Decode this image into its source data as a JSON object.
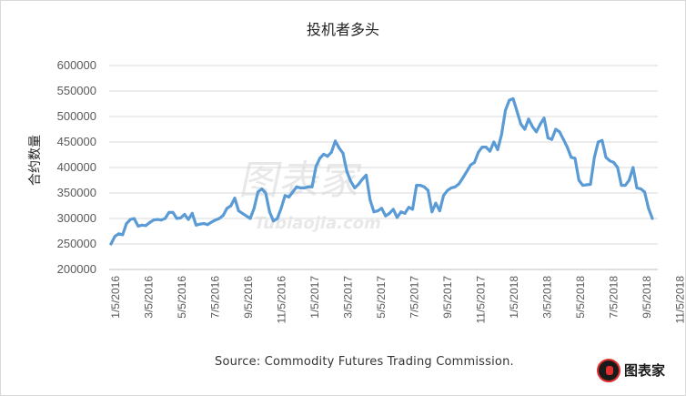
{
  "chart_data": {
    "type": "line",
    "title": "投机者多头",
    "ylabel": "合约数量",
    "xlabel": "",
    "source": "Source: Commodity Futures Trading Commission.",
    "watermark": "图表家",
    "watermark_sub": "Tubiaojia.com",
    "logo_text": "图表家",
    "ylim": [
      200000,
      600000
    ],
    "yticks": [
      200000,
      250000,
      300000,
      350000,
      400000,
      450000,
      500000,
      550000,
      600000
    ],
    "xticks": [
      "1/5/2016",
      "3/5/2016",
      "5/5/2016",
      "7/5/2016",
      "9/5/2016",
      "11/5/2016",
      "1/5/2017",
      "3/5/2017",
      "5/5/2017",
      "7/5/2017",
      "9/5/2017",
      "11/5/2017",
      "1/5/2018",
      "3/5/2018",
      "5/5/2018",
      "7/5/2018",
      "9/5/2018",
      "11/5/2018"
    ],
    "line_color": "#5b9bd5",
    "grid": true,
    "series": [
      {
        "values": [
          250000,
          265000,
          270000,
          268000,
          290000,
          298000,
          300000,
          285000,
          287000,
          286000,
          292000,
          297000,
          298000,
          297000,
          300000,
          312000,
          312000,
          300000,
          301000,
          308000,
          298000,
          310000,
          287000,
          289000,
          290000,
          288000,
          293000,
          297000,
          300000,
          306000,
          320000,
          325000,
          340000,
          315000,
          310000,
          305000,
          300000,
          320000,
          352000,
          358000,
          350000,
          313000,
          295000,
          300000,
          320000,
          345000,
          342000,
          352000,
          362000,
          360000,
          360000,
          362000,
          362000,
          402000,
          418000,
          426000,
          422000,
          430000,
          452000,
          438000,
          428000,
          392000,
          373000,
          360000,
          367000,
          377000,
          385000,
          336000,
          313000,
          315000,
          320000,
          305000,
          310000,
          318000,
          302000,
          313000,
          310000,
          322000,
          318000,
          365000,
          365000,
          362000,
          355000,
          313000,
          330000,
          315000,
          345000,
          355000,
          360000,
          362000,
          368000,
          380000,
          392000,
          405000,
          410000,
          430000,
          440000,
          440000,
          432000,
          450000,
          435000,
          465000,
          512000,
          532000,
          535000,
          510000,
          485000,
          475000,
          495000,
          480000,
          470000,
          485000,
          497000,
          458000,
          455000,
          475000,
          470000,
          455000,
          440000,
          420000,
          418000,
          375000,
          365000,
          366000,
          367000,
          420000,
          450000,
          453000,
          420000,
          413000,
          410000,
          400000,
          365000,
          365000,
          375000,
          400000,
          360000,
          358000,
          352000,
          320000,
          300000
        ]
      }
    ]
  }
}
